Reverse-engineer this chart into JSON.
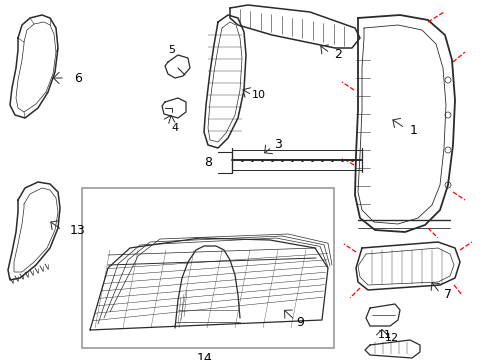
{
  "background_color": "#ffffff",
  "line_color": "#2a2a2a",
  "red_color": "#ff0000",
  "label_color": "#000000",
  "figsize": [
    4.89,
    3.6
  ],
  "dpi": 100,
  "border_color": "#888888"
}
